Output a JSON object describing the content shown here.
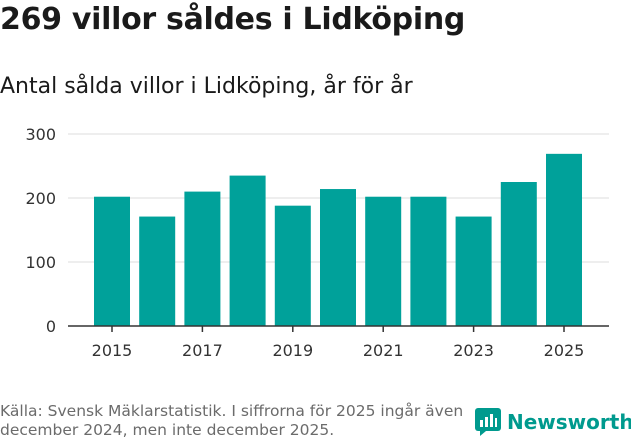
{
  "header": {
    "title": "269 villor såldes i Lidköping",
    "subtitle": "Antal sålda villor i Lidköping, år för år"
  },
  "footer": {
    "source": "Källa: Svensk Mäklarstatistik. I siffrorna för 2025 ingår även december 2024, men inte december 2025.",
    "brand": "Newsworthy",
    "brand_icon": "newsworthy-logo-icon"
  },
  "colors": {
    "bar": "#00a19a",
    "grid": "#dddddd",
    "axis": "#333333",
    "brand": "#009a8e"
  },
  "chart_data": {
    "type": "bar",
    "title": "269 villor såldes i Lidköping",
    "subtitle": "Antal sålda villor i Lidköping, år för år",
    "xlabel": "",
    "ylabel": "",
    "categories": [
      "2015",
      "2016",
      "2017",
      "2018",
      "2019",
      "2020",
      "2021",
      "2022",
      "2023",
      "2024",
      "2025"
    ],
    "values": [
      202,
      171,
      210,
      235,
      188,
      214,
      202,
      202,
      171,
      225,
      269
    ],
    "ylim": [
      0,
      300
    ],
    "yticks": [
      "0",
      "100",
      "200",
      "300"
    ],
    "xticks": [
      "2015",
      "2017",
      "2019",
      "2021",
      "2023",
      "2025"
    ],
    "grid": true
  }
}
